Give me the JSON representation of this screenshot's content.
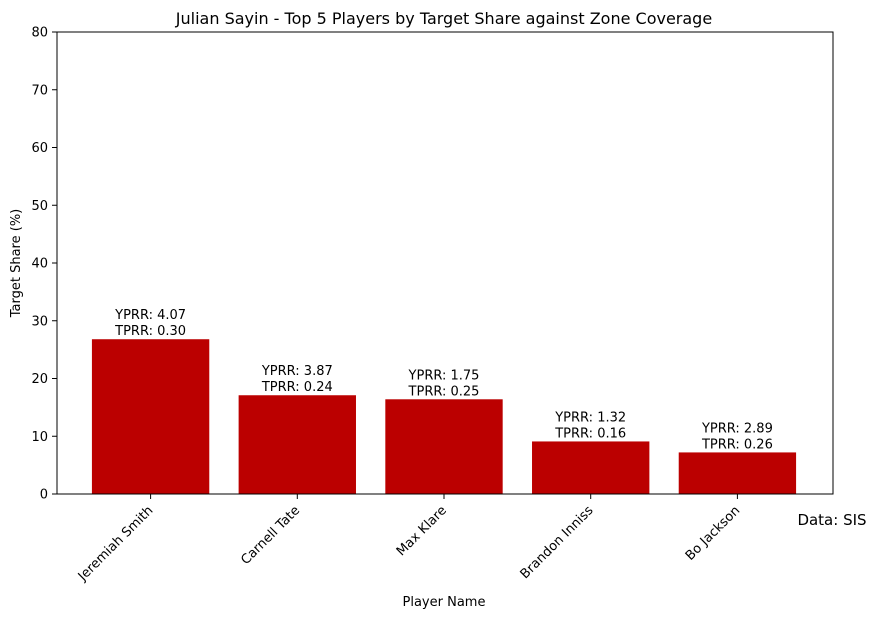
{
  "chart_data": {
    "type": "bar",
    "title": "Julian Sayin - Top 5 Players by Target Share against Zone Coverage",
    "xlabel": "Player Name",
    "ylabel": "Target Share (%)",
    "ylim": [
      0,
      80
    ],
    "yticks": [
      0,
      10,
      20,
      30,
      40,
      50,
      60,
      70,
      80
    ],
    "categories": [
      "Jeremiah Smith",
      "Carnell Tate",
      "Max Klare",
      "Brandon Inniss",
      "Bo Jackson"
    ],
    "values": [
      26.8,
      17.1,
      16.4,
      9.1,
      7.2
    ],
    "bar_labels": [
      {
        "yprr": "YPRR: 4.07",
        "tprr": "TPRR: 0.30"
      },
      {
        "yprr": "YPRR: 3.87",
        "tprr": "TPRR: 0.24"
      },
      {
        "yprr": "YPRR: 1.75",
        "tprr": "TPRR: 0.25"
      },
      {
        "yprr": "YPRR: 1.32",
        "tprr": "TPRR: 0.16"
      },
      {
        "yprr": "YPRR: 2.89",
        "tprr": "TPRR: 0.26"
      }
    ],
    "bar_color": "#bb0000",
    "grid": false,
    "source_note": "Data: SIS"
  }
}
